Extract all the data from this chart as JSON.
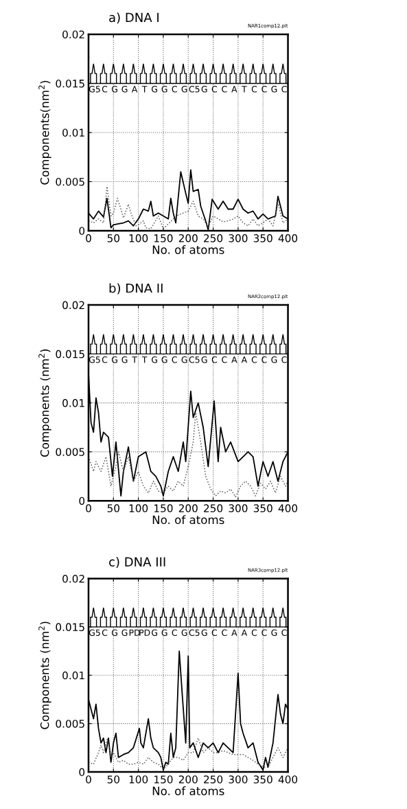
{
  "chart_data": [
    {
      "type": "line",
      "title": "a) DNA I",
      "xlabel": "No. of atoms",
      "ylabel": "Components(nm$^{2}$)",
      "annotations": [
        "NAR1comp12.plt",
        "G5",
        "C",
        "G",
        "G",
        "A",
        "T",
        "G",
        "G",
        "C",
        "G",
        "C5",
        "G",
        "C",
        "C",
        "A",
        "T",
        "C",
        "C",
        "G",
        "C"
      ],
      "xlim": [
        0,
        400
      ],
      "xticks": [
        0,
        50,
        100,
        150,
        200,
        250,
        300,
        350,
        400
      ],
      "ylim": [
        0,
        0.02
      ],
      "yticks": [
        0,
        0.005,
        0.01,
        0.015,
        0.02
      ],
      "grid": true,
      "series": [
        {
          "color": "#000000",
          "line_style": "solid",
          "x": [
            0,
            10,
            20,
            30,
            37,
            45,
            50,
            60,
            70,
            80,
            90,
            100,
            110,
            120,
            125,
            130,
            140,
            150,
            160,
            165,
            170,
            175,
            185,
            195,
            200,
            205,
            210,
            220,
            225,
            235,
            240,
            248,
            260,
            270,
            280,
            290,
            300,
            310,
            320,
            330,
            340,
            350,
            360,
            375,
            380,
            390,
            400
          ],
          "values": [
            0.0018,
            0.0012,
            0.002,
            0.0014,
            0.0033,
            0.0003,
            0.0006,
            0.0007,
            0.0008,
            0.001,
            0.0005,
            0.0012,
            0.0022,
            0.002,
            0.003,
            0.0015,
            0.0018,
            0.0015,
            0.0012,
            0.0033,
            0.0018,
            0.0008,
            0.006,
            0.0038,
            0.0028,
            0.0062,
            0.004,
            0.0042,
            0.0025,
            0.001,
            0.0001,
            0.0032,
            0.0022,
            0.003,
            0.0022,
            0.0022,
            0.0032,
            0.0022,
            0.0018,
            0.002,
            0.0012,
            0.0017,
            0.0012,
            0.0015,
            0.0035,
            0.0015,
            0.0012
          ]
        },
        {
          "color": "#555555",
          "line_style": "dotted",
          "x": [
            0,
            10,
            20,
            30,
            37,
            45,
            50,
            58,
            65,
            70,
            80,
            85,
            95,
            100,
            110,
            115,
            125,
            140,
            150,
            170,
            180,
            190,
            200,
            210,
            220,
            230,
            240,
            250,
            260,
            270,
            280,
            290,
            300,
            310,
            320,
            330,
            340,
            350,
            360,
            370,
            380,
            390,
            400
          ],
          "values": [
            0.001,
            0.0008,
            0.0012,
            0.0008,
            0.0045,
            0.0015,
            0.0018,
            0.0033,
            0.0022,
            0.0013,
            0.0027,
            0.0018,
            0.0005,
            0.0006,
            0.001,
            0.0003,
            0.0002,
            0.0015,
            0.0002,
            0.0012,
            0.0016,
            0.0018,
            0.002,
            0.003,
            0.0015,
            0.0012,
            0.0004,
            0.0015,
            0.0012,
            0.0009,
            0.001,
            0.0012,
            0.0015,
            0.0008,
            0.0005,
            0.0012,
            0.0005,
            0.0008,
            0.0012,
            0.0005,
            0.0028,
            0.0008,
            0.0012
          ]
        }
      ]
    },
    {
      "type": "line",
      "title": "b) DNA II",
      "xlabel": "No. of atoms",
      "ylabel": "Components (nm$^{2}$)",
      "annotations": [
        "NAR2comp12.plt",
        "G5",
        "C",
        "G",
        "G",
        "T",
        "T",
        "G",
        "G",
        "C",
        "G",
        "C5",
        "G",
        "C",
        "C",
        "A",
        "A",
        "C",
        "C",
        "G",
        "C"
      ],
      "xlim": [
        0,
        400
      ],
      "xticks": [
        0,
        50,
        100,
        150,
        200,
        250,
        300,
        350,
        400
      ],
      "ylim": [
        0,
        0.02
      ],
      "yticks": [
        0,
        0.005,
        0.01,
        0.015,
        0.02
      ],
      "grid": true,
      "series": [
        {
          "color": "#000000",
          "line_style": "solid",
          "x": [
            0,
            5,
            10,
            15,
            20,
            25,
            30,
            40,
            48,
            55,
            65,
            70,
            80,
            90,
            100,
            115,
            125,
            135,
            145,
            150,
            160,
            170,
            180,
            190,
            195,
            205,
            210,
            220,
            230,
            240,
            252,
            260,
            265,
            275,
            285,
            300,
            310,
            320,
            330,
            340,
            350,
            360,
            370,
            380,
            390,
            400
          ],
          "values": [
            0.013,
            0.008,
            0.007,
            0.0105,
            0.009,
            0.006,
            0.007,
            0.0065,
            0.0025,
            0.006,
            0.0005,
            0.003,
            0.0055,
            0.002,
            0.0045,
            0.005,
            0.003,
            0.0025,
            0.0015,
            0.0005,
            0.003,
            0.0045,
            0.003,
            0.006,
            0.004,
            0.0112,
            0.0085,
            0.01,
            0.0075,
            0.0035,
            0.0102,
            0.004,
            0.0075,
            0.005,
            0.006,
            0.004,
            0.0045,
            0.005,
            0.0045,
            0.0015,
            0.004,
            0.0025,
            0.004,
            0.002,
            0.004,
            0.005
          ]
        },
        {
          "color": "#555555",
          "line_style": "dotted",
          "x": [
            0,
            10,
            15,
            25,
            35,
            45,
            55,
            60,
            70,
            80,
            90,
            100,
            110,
            120,
            130,
            140,
            150,
            160,
            170,
            180,
            190,
            200,
            210,
            215,
            225,
            235,
            245,
            255,
            265,
            275,
            285,
            295,
            305,
            315,
            325,
            335,
            345,
            355,
            365,
            375,
            385,
            395,
            400
          ],
          "values": [
            0.0045,
            0.003,
            0.004,
            0.003,
            0.0045,
            0.0015,
            0.0035,
            0.005,
            0.003,
            0.0045,
            0.002,
            0.003,
            0.0015,
            0.0008,
            0.002,
            0.001,
            0.0008,
            0.0015,
            0.001,
            0.002,
            0.0015,
            0.0035,
            0.006,
            0.009,
            0.006,
            0.0025,
            0.0012,
            0.0005,
            0.001,
            0.0008,
            0.0012,
            0.0004,
            0.0015,
            0.002,
            0.0015,
            0.0005,
            0.0018,
            0.0012,
            0.002,
            0.0008,
            0.0025,
            0.0015,
            0.002
          ]
        }
      ]
    },
    {
      "type": "line",
      "title": "c) DNA III",
      "xlabel": "No. of atoms",
      "ylabel": "Components (nm$^{2}$)",
      "annotations": [
        "NAR3comp12.plt",
        "G5",
        "C",
        "G",
        "G",
        "PD",
        "PD",
        "G",
        "G",
        "C",
        "G",
        "C5",
        "G",
        "C",
        "C",
        "A",
        "A",
        "C",
        "C",
        "G",
        "C"
      ],
      "xlim": [
        0,
        400
      ],
      "xticks": [
        0,
        50,
        100,
        150,
        200,
        250,
        300,
        350,
        400
      ],
      "ylim": [
        0,
        0.02
      ],
      "yticks": [
        0,
        0.005,
        0.01,
        0.015,
        0.02
      ],
      "grid": true,
      "series": [
        {
          "color": "#000000",
          "line_style": "solid",
          "x": [
            0,
            5,
            10,
            15,
            20,
            25,
            30,
            35,
            40,
            45,
            50,
            55,
            60,
            70,
            80,
            90,
            102,
            105,
            110,
            120,
            125,
            130,
            140,
            145,
            150,
            155,
            160,
            165,
            170,
            175,
            182,
            188,
            195,
            200,
            203,
            210,
            220,
            230,
            240,
            250,
            260,
            270,
            280,
            290,
            300,
            305,
            310,
            320,
            330,
            340,
            350,
            355,
            360,
            370,
            380,
            385,
            390,
            395,
            400
          ],
          "values": [
            0.0075,
            0.0065,
            0.0055,
            0.007,
            0.0045,
            0.003,
            0.0035,
            0.002,
            0.0035,
            0.001,
            0.003,
            0.004,
            0.0015,
            0.0018,
            0.002,
            0.0025,
            0.0045,
            0.003,
            0.0025,
            0.0055,
            0.0035,
            0.0025,
            0.002,
            0.0015,
            0.0002,
            0.001,
            0.0008,
            0.004,
            0.0015,
            0.0025,
            0.0125,
            0.008,
            0.003,
            0.012,
            0.0025,
            0.003,
            0.0015,
            0.003,
            0.0025,
            0.003,
            0.002,
            0.003,
            0.0025,
            0.002,
            0.0102,
            0.005,
            0.004,
            0.0025,
            0.003,
            0.001,
            0.0002,
            0.0015,
            0.0005,
            0.003,
            0.008,
            0.006,
            0.005,
            0.007,
            0.0065
          ]
        },
        {
          "color": "#555555",
          "line_style": "dotted",
          "x": [
            0,
            10,
            20,
            25,
            30,
            38,
            45,
            50,
            60,
            70,
            80,
            90,
            100,
            110,
            120,
            130,
            140,
            150,
            160,
            170,
            180,
            190,
            200,
            210,
            220,
            230,
            240,
            250,
            260,
            270,
            280,
            290,
            300,
            310,
            320,
            330,
            340,
            350,
            360,
            370,
            380,
            390,
            400
          ],
          "values": [
            0.001,
            0.0008,
            0.002,
            0.0028,
            0.002,
            0.0035,
            0.0015,
            0.002,
            0.001,
            0.0012,
            0.0008,
            0.0008,
            0.001,
            0.0008,
            0.0015,
            0.001,
            0.0008,
            0.0003,
            0.0008,
            0.0015,
            0.0015,
            0.0012,
            0.002,
            0.002,
            0.0035,
            0.002,
            0.0025,
            0.002,
            0.002,
            0.0022,
            0.002,
            0.0018,
            0.0018,
            0.0018,
            0.0015,
            0.0012,
            0.0008,
            0.0005,
            0.0005,
            0.0015,
            0.0025,
            0.0015,
            0.0025
          ]
        }
      ]
    }
  ]
}
